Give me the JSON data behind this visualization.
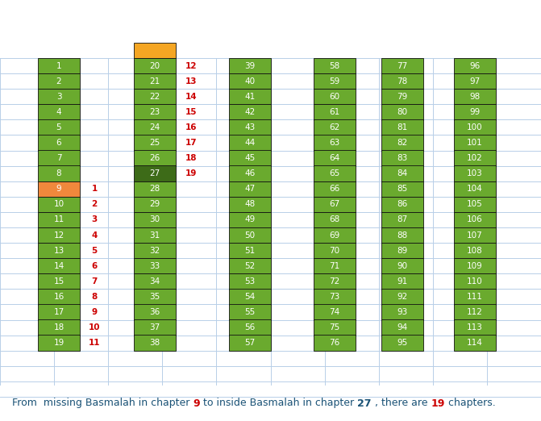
{
  "title_parts": [
    {
      "text": "From  missing Basmalah in chapter ",
      "color": "#1a5276",
      "bold": false
    },
    {
      "text": "9",
      "color": "#cc0000",
      "bold": true
    },
    {
      "text": " to inside Basmalah in chapter ",
      "color": "#1a5276",
      "bold": false
    },
    {
      "text": "27",
      "color": "#1a5276",
      "bold": true
    },
    {
      "text": " , there are ",
      "color": "#1a5276",
      "bold": false
    },
    {
      "text": "19",
      "color": "#cc0000",
      "bold": true
    },
    {
      "text": " chapters.",
      "color": "#1a5276",
      "bold": false
    }
  ],
  "green_color": "#6aaa2e",
  "dark_green_color": "#3d6b18",
  "orange_color": "#f0883c",
  "orange_top_color": "#f5a623",
  "white_text": "#ffffff",
  "red_text": "#cc0000",
  "bg_color": "#ffffff",
  "grid_color": "#b8cfe8",
  "figsize": [
    6.71,
    5.22
  ],
  "dpi": 100
}
